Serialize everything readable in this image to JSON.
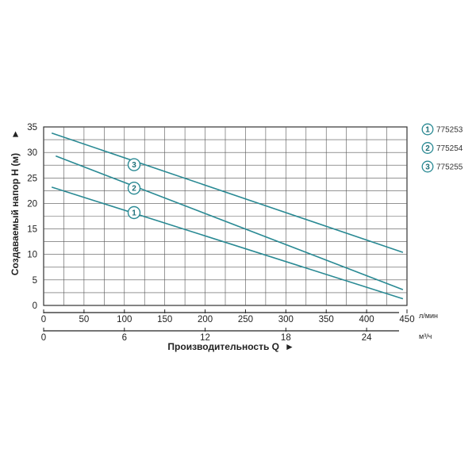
{
  "chart_data": {
    "type": "line",
    "ylabel": "Создаваемый напор H (м)",
    "ylabel_arrow": "►",
    "xlabel": "Производительность Q",
    "xlabel_arrow": "►",
    "x_unit_primary": "л/мин",
    "x_unit_secondary": "м³/ч",
    "xlim": [
      0,
      450
    ],
    "ylim": [
      0,
      35
    ],
    "x_ticks": [
      "0",
      "50",
      "100",
      "150",
      "200",
      "250",
      "300",
      "350",
      "400",
      "450"
    ],
    "x_tick_values": [
      0,
      50,
      100,
      150,
      200,
      250,
      300,
      350,
      400,
      450
    ],
    "x2_ticks": [
      "0",
      "6",
      "12",
      "18",
      "24"
    ],
    "x2_tick_values": [
      0,
      100,
      200,
      300,
      400
    ],
    "y_ticks": [
      "0",
      "5",
      "10",
      "15",
      "20",
      "25",
      "30",
      "35"
    ],
    "y_tick_values": [
      0,
      5,
      10,
      15,
      20,
      25,
      30,
      35
    ],
    "grid": true,
    "series_color": "#2a8a94",
    "series": [
      {
        "marker": "1",
        "name": "775253",
        "x": [
          10,
          445
        ],
        "y": [
          23.2,
          1.3
        ],
        "marker_at": [
          112,
          18.2
        ]
      },
      {
        "marker": "2",
        "name": "775254",
        "x": [
          15,
          445
        ],
        "y": [
          29.3,
          3.1
        ],
        "marker_at": [
          112,
          23.0
        ]
      },
      {
        "marker": "3",
        "name": "775255",
        "x": [
          10,
          445
        ],
        "y": [
          33.8,
          10.4
        ],
        "marker_at": [
          112,
          27.6
        ]
      }
    ],
    "legend_position": "right"
  }
}
